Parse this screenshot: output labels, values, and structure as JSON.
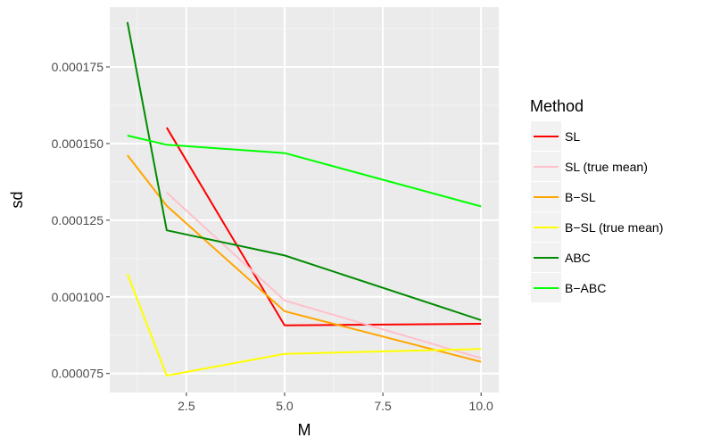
{
  "chart_data": {
    "type": "line",
    "title": "",
    "xlabel": "M",
    "ylabel": "sd",
    "xlim": [
      0.55,
      10.45
    ],
    "ylim": [
      6.88e-05,
      0.0001945
    ],
    "grid": true,
    "x_ticks": [
      2.5,
      5.0,
      7.5,
      10.0
    ],
    "x_tick_labels": [
      "2.5",
      "5.0",
      "7.5",
      "10.0"
    ],
    "y_ticks": [
      7.5e-05,
      0.0001,
      0.000125,
      0.00015,
      0.000175
    ],
    "y_tick_labels": [
      "0.000075",
      "0.000100",
      "0.000125",
      "0.000150",
      "0.000175"
    ],
    "legend": {
      "title": "Method",
      "position": "right"
    },
    "series": [
      {
        "name": "SL",
        "color": "#ff0000",
        "x": [
          2,
          5,
          10
        ],
        "values": [
          0.0001552,
          9.07e-05,
          9.12e-05
        ]
      },
      {
        "name": "SL (true mean)",
        "color": "#ffc0cb",
        "x": [
          2,
          5,
          10
        ],
        "values": [
          0.000134,
          9.88e-05,
          8e-05
        ]
      },
      {
        "name": "B−SL",
        "color": "#ffa500",
        "x": [
          1,
          2,
          5,
          10
        ],
        "values": [
          0.0001462,
          0.0001297,
          9.53e-05,
          7.88e-05
        ]
      },
      {
        "name": "B−SL (true mean)",
        "color": "#ffff00",
        "x": [
          1,
          2,
          5,
          10
        ],
        "values": [
          0.0001075,
          7.43e-05,
          8.14e-05,
          8.3e-05
        ]
      },
      {
        "name": "ABC",
        "color": "#008b00",
        "x": [
          1,
          2,
          5,
          10
        ],
        "values": [
          0.0001896,
          0.0001217,
          0.0001135,
          9.24e-05
        ]
      },
      {
        "name": "B−ABC",
        "color": "#00ff00",
        "x": [
          1,
          2,
          5,
          10
        ],
        "values": [
          0.0001526,
          0.0001496,
          0.0001469,
          0.0001295
        ]
      }
    ]
  }
}
